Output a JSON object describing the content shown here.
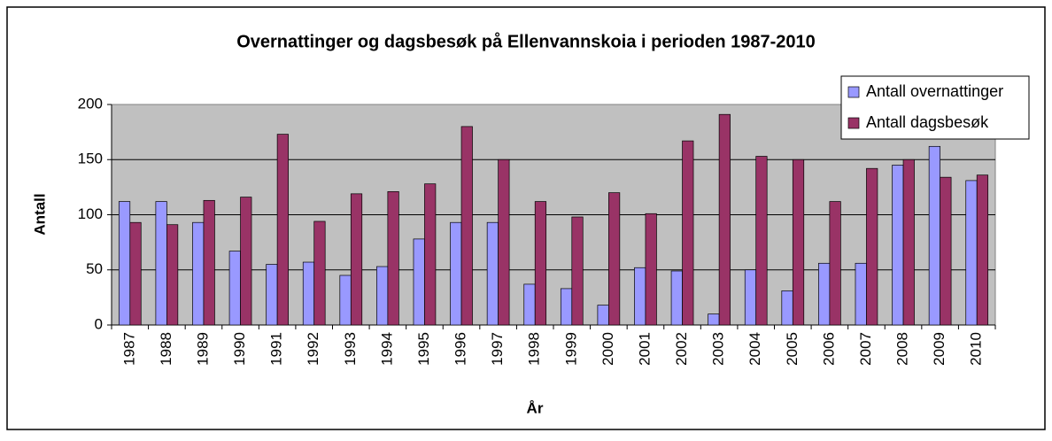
{
  "chart_data": {
    "type": "bar",
    "title": "Overnattinger og dagsbesøk på Ellenvannskoia i perioden 1987-2010",
    "x_label": "År",
    "y_label": "Antall",
    "categories": [
      "1987",
      "1988",
      "1989",
      "1990",
      "1991",
      "1992",
      "1993",
      "1994",
      "1995",
      "1996",
      "1997",
      "1998",
      "1999",
      "2000",
      "2001",
      "2002",
      "2003",
      "2004",
      "2005",
      "2006",
      "2007",
      "2008",
      "2009",
      "2010"
    ],
    "series": [
      {
        "name": "Antall overnattinger",
        "color": "#9999ff",
        "values": [
          112,
          112,
          93,
          67,
          55,
          57,
          45,
          53,
          78,
          93,
          93,
          37,
          33,
          18,
          52,
          49,
          10,
          50,
          31,
          56,
          56,
          145,
          162,
          131
        ]
      },
      {
        "name": "Antall dagsbesøk",
        "color": "#993366",
        "values": [
          93,
          91,
          113,
          116,
          173,
          94,
          119,
          121,
          128,
          180,
          150,
          112,
          98,
          120,
          101,
          167,
          191,
          153,
          150,
          112,
          142,
          150,
          134,
          136
        ]
      }
    ],
    "ylim": [
      0,
      200
    ],
    "yticks": [
      0,
      50,
      100,
      150,
      200
    ],
    "grid": true,
    "legend": "top-right"
  }
}
